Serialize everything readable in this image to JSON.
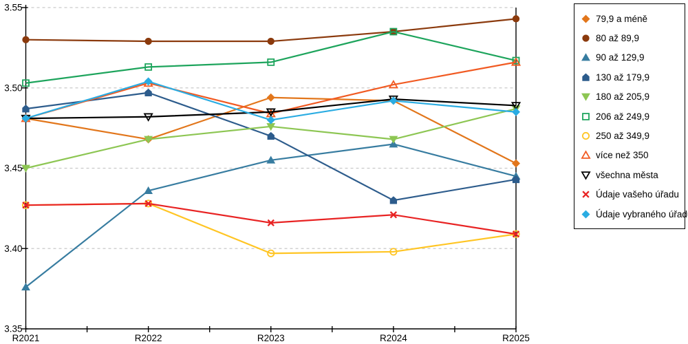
{
  "chart_data": {
    "type": "line",
    "title": "",
    "xlabel": "",
    "ylabel": "",
    "x_categories": [
      "R2021",
      "R2022",
      "R2023",
      "R2024",
      "R2025"
    ],
    "ylim": [
      3.35,
      3.55
    ],
    "y_ticks": [
      "3.35",
      "3.40",
      "3.45",
      "3.50",
      "3.55"
    ],
    "grid": "horizontal-dashed",
    "legend_position": "top-right",
    "series": [
      {
        "name": "79,9 a méně",
        "marker": "diamond",
        "fill": "filled",
        "color": "#E2761B",
        "values": [
          3.481,
          3.468,
          3.494,
          3.492,
          3.453
        ]
      },
      {
        "name": "80 až 89,9",
        "marker": "circle",
        "fill": "filled",
        "color": "#8B3A0D",
        "values": [
          3.53,
          3.529,
          3.529,
          3.535,
          3.543
        ]
      },
      {
        "name": "90 až 129,9",
        "marker": "triangle-up",
        "fill": "filled",
        "color": "#377CA0",
        "values": [
          3.376,
          3.436,
          3.455,
          3.465,
          3.445
        ]
      },
      {
        "name": "130 až 179,9",
        "marker": "pentagon",
        "fill": "filled",
        "color": "#2D5C8C",
        "values": [
          3.487,
          3.497,
          3.47,
          3.43,
          3.443
        ]
      },
      {
        "name": "180 až 205,9",
        "marker": "triangle-down",
        "fill": "filled",
        "color": "#8DC653",
        "values": [
          3.45,
          3.468,
          3.476,
          3.468,
          3.487
        ]
      },
      {
        "name": "206 až 249,9",
        "marker": "square",
        "fill": "open",
        "color": "#1DA45C",
        "values": [
          3.503,
          3.513,
          3.516,
          3.535,
          3.517
        ]
      },
      {
        "name": "250 až 349,9",
        "marker": "circle",
        "fill": "open",
        "color": "#FFC524",
        "values": [
          3.427,
          3.428,
          3.397,
          3.398,
          3.409
        ]
      },
      {
        "name": "více než 350",
        "marker": "triangle-up",
        "fill": "open",
        "color": "#F15A22",
        "values": [
          3.481,
          3.503,
          3.484,
          3.502,
          3.516
        ]
      },
      {
        "name": "všechna města",
        "marker": "triangle-down",
        "fill": "open",
        "color": "#000000",
        "values": [
          3.481,
          3.482,
          3.485,
          3.493,
          3.489
        ]
      },
      {
        "name": "Údaje vašeho úřadu",
        "marker": "x",
        "fill": "open",
        "color": "#E82323",
        "values": [
          3.427,
          3.428,
          3.416,
          3.421,
          3.409
        ]
      },
      {
        "name": "Údaje vybraného úřadu",
        "marker": "diamond",
        "fill": "filled",
        "color": "#2AACE2",
        "values": [
          3.481,
          3.504,
          3.48,
          3.492,
          3.485
        ]
      }
    ]
  },
  "colors": {
    "background": "#FFFFFF",
    "grid": "#C9C9C9",
    "axis": "#000000",
    "legend_border": "#000000"
  }
}
